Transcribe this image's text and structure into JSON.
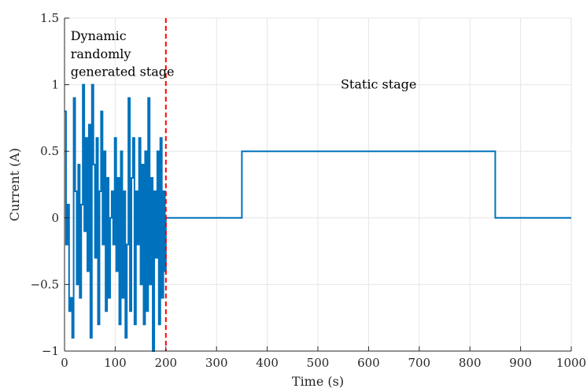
{
  "chart_data": {
    "type": "line",
    "title": "",
    "xlabel": "Time (s)",
    "ylabel": "Current (A)",
    "xlim": [
      0,
      1000
    ],
    "ylim": [
      -1,
      1.5
    ],
    "xticks": [
      0,
      100,
      200,
      300,
      400,
      500,
      600,
      700,
      800,
      900,
      1000
    ],
    "yticks": [
      -1,
      -0.5,
      0,
      0.5,
      1,
      1.5
    ],
    "xtick_labels": [
      "0",
      "100",
      "200",
      "300",
      "400",
      "500",
      "600",
      "700",
      "800",
      "900",
      "1000"
    ],
    "ytick_labels": [
      "−1",
      "−0.5",
      "0",
      "0.5",
      "1",
      "1.5"
    ],
    "grid": true,
    "colors": {
      "series": "#0072BD",
      "divider": "#FF0000",
      "grid": "#E6E6E6",
      "axis": "#262626"
    },
    "series": [
      {
        "style": "step",
        "x": [
          0,
          3,
          6,
          9,
          12,
          15,
          18,
          21,
          24,
          27,
          30,
          33,
          36,
          39,
          42,
          45,
          48,
          51,
          54,
          57,
          60,
          63,
          66,
          69,
          72,
          75,
          78,
          81,
          84,
          87,
          90,
          93,
          96,
          99,
          102,
          105,
          108,
          111,
          114,
          117,
          120,
          123,
          126,
          129,
          132,
          135,
          138,
          141,
          144,
          147,
          150,
          153,
          156,
          159,
          162,
          165,
          168,
          171,
          174,
          177,
          180,
          183,
          186,
          189,
          192,
          195,
          198,
          200,
          350,
          850,
          1000
        ],
        "y": [
          0.8,
          -0.2,
          0.1,
          -0.7,
          -0.6,
          -0.9,
          0.9,
          0.2,
          -0.5,
          0.4,
          -0.6,
          0.1,
          1.0,
          -0.1,
          0.6,
          -0.4,
          0.7,
          -0.9,
          1.0,
          0.4,
          -0.3,
          0.6,
          -0.8,
          0.2,
          0.8,
          -0.2,
          0.5,
          -0.7,
          0.3,
          -0.6,
          0.0,
          0.2,
          -0.2,
          0.6,
          -0.4,
          0.3,
          -0.8,
          0.5,
          -0.6,
          0.2,
          -0.9,
          -0.2,
          0.9,
          -0.7,
          0.3,
          0.6,
          -0.8,
          0.2,
          -0.2,
          0.6,
          -0.5,
          0.4,
          -0.8,
          0.5,
          -0.7,
          0.9,
          -0.5,
          0.3,
          -1.0,
          0.2,
          -0.3,
          0.5,
          -0.8,
          0.6,
          -0.6,
          0.2,
          -0.4,
          0.0,
          0.5,
          0.0,
          0.0
        ]
      }
    ],
    "reference_lines": [
      {
        "orientation": "vertical",
        "x": 200,
        "style": "dashed"
      }
    ],
    "annotations": [
      {
        "text": "Dynamic",
        "x": 12,
        "y": 1.335
      },
      {
        "text": "randomly",
        "x": 12,
        "y": 1.2
      },
      {
        "text": "generated stage",
        "x": 12,
        "y": 1.065
      },
      {
        "text": "Static stage",
        "x": 545,
        "y": 0.97
      }
    ]
  }
}
